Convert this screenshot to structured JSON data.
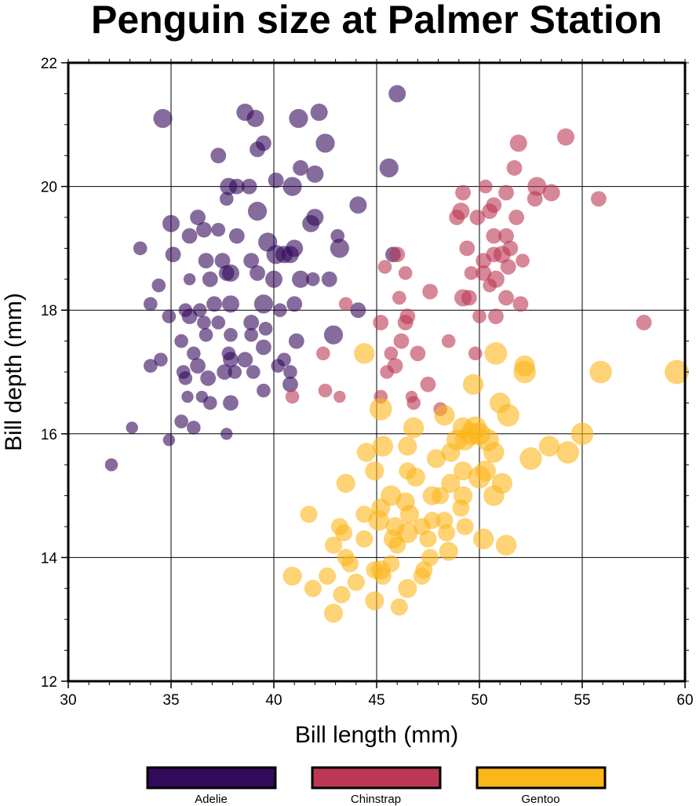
{
  "chart_data": {
    "type": "scatter",
    "title": "Penguin size at Palmer Station",
    "xlabel": "Bill length (mm)",
    "ylabel": "Bill depth (mm)",
    "xlim": [
      30,
      60
    ],
    "ylim": [
      12,
      22
    ],
    "xticks": [
      "30",
      "35",
      "40",
      "45",
      "50",
      "55",
      "60"
    ],
    "yticks": [
      "12",
      "14",
      "16",
      "18",
      "20",
      "22"
    ],
    "grid": true,
    "legend_placement": "bottom",
    "marker_opacity": 0.6,
    "series": [
      {
        "name": "Adelie",
        "color": "#330a5c",
        "points": [
          [
            34.6,
            21.1,
            1.1
          ],
          [
            38.6,
            21.2,
            1.0
          ],
          [
            39.1,
            21.1,
            1.0
          ],
          [
            41.2,
            21.1,
            1.1
          ],
          [
            42.2,
            21.2,
            1.0
          ],
          [
            46.0,
            21.5,
            1.0
          ],
          [
            42.5,
            20.7,
            1.1
          ],
          [
            39.5,
            20.7,
            0.9
          ],
          [
            39.2,
            20.6,
            0.9
          ],
          [
            37.3,
            20.5,
            0.9
          ],
          [
            41.3,
            20.3,
            0.9
          ],
          [
            42.0,
            20.2,
            1.0
          ],
          [
            45.6,
            20.3,
            1.1
          ],
          [
            37.8,
            20.0,
            1.0
          ],
          [
            38.2,
            20.0,
            0.9
          ],
          [
            38.8,
            20.0,
            0.9
          ],
          [
            40.1,
            20.1,
            0.9
          ],
          [
            40.9,
            20.0,
            1.1
          ],
          [
            37.7,
            19.8,
            0.8
          ],
          [
            39.2,
            19.6,
            1.1
          ],
          [
            44.1,
            19.7,
            1.0
          ],
          [
            35.0,
            19.4,
            1.0
          ],
          [
            36.3,
            19.5,
            0.9
          ],
          [
            36.6,
            19.3,
            0.9
          ],
          [
            35.1,
            18.9,
            0.9
          ],
          [
            35.9,
            19.2,
            0.9
          ],
          [
            33.5,
            19.0,
            0.8
          ],
          [
            42.0,
            19.5,
            1.0
          ],
          [
            41.8,
            19.4,
            1.0
          ],
          [
            43.2,
            19.0,
            1.1
          ],
          [
            43.1,
            19.2,
            0.8
          ],
          [
            38.2,
            19.2,
            0.9
          ],
          [
            37.3,
            19.3,
            0.8
          ],
          [
            39.7,
            19.1,
            1.1
          ],
          [
            40.5,
            18.9,
            1.0
          ],
          [
            41.0,
            19.0,
            1.0
          ],
          [
            40.8,
            18.9,
            1.0
          ],
          [
            40.1,
            18.9,
            1.1
          ],
          [
            45.8,
            18.9,
            0.9
          ],
          [
            36.7,
            18.8,
            0.9
          ],
          [
            37.5,
            18.8,
            0.9
          ],
          [
            38.9,
            18.8,
            0.9
          ],
          [
            34.4,
            18.4,
            0.8
          ],
          [
            35.9,
            18.5,
            0.7
          ],
          [
            36.9,
            18.5,
            0.9
          ],
          [
            37.7,
            18.6,
            0.9
          ],
          [
            37.9,
            18.6,
            1.0
          ],
          [
            39.2,
            18.6,
            0.9
          ],
          [
            40.0,
            18.5,
            1.0
          ],
          [
            41.3,
            18.5,
            1.0
          ],
          [
            41.9,
            18.5,
            0.8
          ],
          [
            42.7,
            18.5,
            0.9
          ],
          [
            34.0,
            18.1,
            0.8
          ],
          [
            35.7,
            18.0,
            0.8
          ],
          [
            36.4,
            18.0,
            0.8
          ],
          [
            37.1,
            18.1,
            0.9
          ],
          [
            37.9,
            18.1,
            1.0
          ],
          [
            39.5,
            18.1,
            1.1
          ],
          [
            40.3,
            18.0,
            0.8
          ],
          [
            41.0,
            18.1,
            0.9
          ],
          [
            44.1,
            18.0,
            0.9
          ],
          [
            34.9,
            17.9,
            0.8
          ],
          [
            35.9,
            17.9,
            0.9
          ],
          [
            36.6,
            17.8,
            0.8
          ],
          [
            37.3,
            17.8,
            0.8
          ],
          [
            38.9,
            17.8,
            0.9
          ],
          [
            39.6,
            17.7,
            0.8
          ],
          [
            35.5,
            17.5,
            0.8
          ],
          [
            36.7,
            17.6,
            0.8
          ],
          [
            37.9,
            17.6,
            0.8
          ],
          [
            38.9,
            17.6,
            0.8
          ],
          [
            41.1,
            17.5,
            0.9
          ],
          [
            42.9,
            17.6,
            1.1
          ],
          [
            36.1,
            17.3,
            0.8
          ],
          [
            37.8,
            17.3,
            0.8
          ],
          [
            37.9,
            17.2,
            0.9
          ],
          [
            38.6,
            17.2,
            0.9
          ],
          [
            39.5,
            17.4,
            0.9
          ],
          [
            40.5,
            17.2,
            0.8
          ],
          [
            34.0,
            17.1,
            0.8
          ],
          [
            34.5,
            17.2,
            0.8
          ],
          [
            35.6,
            17.0,
            0.8
          ],
          [
            36.3,
            17.1,
            0.9
          ],
          [
            37.6,
            17.0,
            0.9
          ],
          [
            38.1,
            17.0,
            0.8
          ],
          [
            39.0,
            17.0,
            0.8
          ],
          [
            40.2,
            17.1,
            0.8
          ],
          [
            35.7,
            16.9,
            0.8
          ],
          [
            36.8,
            16.9,
            0.9
          ],
          [
            40.8,
            17.0,
            0.8
          ],
          [
            35.8,
            16.6,
            0.7
          ],
          [
            36.5,
            16.6,
            0.7
          ],
          [
            36.9,
            16.5,
            0.8
          ],
          [
            37.9,
            16.5,
            0.9
          ],
          [
            39.5,
            16.7,
            0.8
          ],
          [
            40.8,
            16.8,
            0.9
          ],
          [
            35.5,
            16.2,
            0.8
          ],
          [
            36.1,
            16.1,
            0.8
          ],
          [
            33.1,
            16.1,
            0.7
          ],
          [
            34.9,
            15.9,
            0.7
          ],
          [
            37.7,
            16.0,
            0.7
          ],
          [
            32.1,
            15.5,
            0.75
          ]
        ]
      },
      {
        "name": "Chinstrap",
        "color": "#bb3754",
        "points": [
          [
            54.2,
            20.8,
            1.0
          ],
          [
            51.9,
            20.7,
            1.0
          ],
          [
            51.7,
            20.3,
            0.9
          ],
          [
            52.8,
            20.0,
            1.1
          ],
          [
            53.5,
            19.9,
            1.0
          ],
          [
            52.7,
            19.8,
            0.9
          ],
          [
            55.8,
            19.8,
            0.9
          ],
          [
            49.2,
            19.9,
            0.9
          ],
          [
            50.3,
            20.0,
            0.8
          ],
          [
            51.3,
            19.9,
            0.9
          ],
          [
            49.1,
            19.6,
            1.0
          ],
          [
            48.9,
            19.5,
            0.9
          ],
          [
            50.7,
            19.7,
            0.9
          ],
          [
            50.5,
            19.6,
            0.9
          ],
          [
            49.9,
            19.5,
            0.9
          ],
          [
            51.8,
            19.5,
            0.9
          ],
          [
            49.4,
            19.0,
            0.9
          ],
          [
            50.7,
            19.2,
            0.9
          ],
          [
            51.3,
            19.2,
            0.9
          ],
          [
            51.1,
            18.9,
            1.0
          ],
          [
            51.5,
            19.0,
            0.9
          ],
          [
            50.2,
            18.8,
            0.9
          ],
          [
            52.1,
            18.8,
            0.8
          ],
          [
            50.7,
            18.9,
            0.9
          ],
          [
            49.6,
            18.6,
            0.8
          ],
          [
            50.2,
            18.6,
            0.9
          ],
          [
            51.4,
            18.7,
            0.9
          ],
          [
            50.8,
            18.5,
            1.0
          ],
          [
            46.0,
            18.9,
            0.9
          ],
          [
            45.4,
            18.7,
            0.8
          ],
          [
            46.4,
            18.6,
            0.8
          ],
          [
            50.5,
            18.4,
            0.8
          ],
          [
            49.2,
            18.2,
            1.0
          ],
          [
            49.5,
            18.2,
            0.9
          ],
          [
            47.6,
            18.3,
            0.9
          ],
          [
            46.1,
            18.2,
            0.8
          ],
          [
            51.3,
            18.2,
            0.9
          ],
          [
            52.0,
            18.1,
            0.9
          ],
          [
            43.5,
            18.1,
            0.8
          ],
          [
            50.0,
            17.9,
            0.8
          ],
          [
            50.8,
            17.9,
            0.9
          ],
          [
            46.5,
            17.9,
            0.9
          ],
          [
            46.4,
            17.8,
            0.9
          ],
          [
            45.2,
            17.8,
            0.9
          ],
          [
            58.0,
            17.8,
            0.9
          ],
          [
            48.5,
            17.5,
            0.8
          ],
          [
            46.2,
            17.5,
            0.9
          ],
          [
            45.7,
            17.3,
            0.8
          ],
          [
            42.4,
            17.3,
            0.8
          ],
          [
            47.0,
            17.3,
            0.9
          ],
          [
            49.8,
            17.3,
            0.8
          ],
          [
            45.5,
            17.0,
            0.8
          ],
          [
            45.9,
            17.1,
            0.9
          ],
          [
            47.5,
            16.8,
            0.9
          ],
          [
            42.5,
            16.7,
            0.8
          ],
          [
            40.9,
            16.6,
            0.8
          ],
          [
            43.2,
            16.6,
            0.7
          ],
          [
            45.2,
            16.6,
            0.8
          ],
          [
            46.8,
            16.5,
            0.8
          ],
          [
            46.7,
            16.6,
            0.7
          ],
          [
            48.1,
            16.4,
            0.8
          ]
        ]
      },
      {
        "name": "Gentoo",
        "color": "#fbb61a",
        "points": [
          [
            44.4,
            17.3,
            1.2
          ],
          [
            50.8,
            17.3,
            1.3
          ],
          [
            52.2,
            17.1,
            1.2
          ],
          [
            52.2,
            17.0,
            1.3
          ],
          [
            55.9,
            17.0,
            1.3
          ],
          [
            59.6,
            17.0,
            1.4
          ],
          [
            49.7,
            16.8,
            1.2
          ],
          [
            51.0,
            16.5,
            1.2
          ],
          [
            51.4,
            16.3,
            1.3
          ],
          [
            48.3,
            16.3,
            1.2
          ],
          [
            45.2,
            16.4,
            1.3
          ],
          [
            46.8,
            16.1,
            1.2
          ],
          [
            49.2,
            16.1,
            1.2
          ],
          [
            49.6,
            16.0,
            1.3
          ],
          [
            50.0,
            16.0,
            1.3
          ],
          [
            49.3,
            15.9,
            1.2
          ],
          [
            50.4,
            15.9,
            1.3
          ],
          [
            48.9,
            15.9,
            1.2
          ],
          [
            49.8,
            16.1,
            1.3
          ],
          [
            45.3,
            15.8,
            1.2
          ],
          [
            46.5,
            15.8,
            1.1
          ],
          [
            53.4,
            15.8,
            1.2
          ],
          [
            55.0,
            16.0,
            1.3
          ],
          [
            50.7,
            15.7,
            1.2
          ],
          [
            48.6,
            15.7,
            1.1
          ],
          [
            44.5,
            15.7,
            1.1
          ],
          [
            54.3,
            15.7,
            1.3
          ],
          [
            52.5,
            15.6,
            1.3
          ],
          [
            47.9,
            15.6,
            1.1
          ],
          [
            44.9,
            15.4,
            1.1
          ],
          [
            46.5,
            15.4,
            1.0
          ],
          [
            46.9,
            15.3,
            1.1
          ],
          [
            50.0,
            15.3,
            1.3
          ],
          [
            50.3,
            15.4,
            1.2
          ],
          [
            49.2,
            15.4,
            1.1
          ],
          [
            51.1,
            15.2,
            1.2
          ],
          [
            48.6,
            15.2,
            1.1
          ],
          [
            43.5,
            15.2,
            1.1
          ],
          [
            47.7,
            15.0,
            1.1
          ],
          [
            50.7,
            15.0,
            1.2
          ],
          [
            49.2,
            15.0,
            1.1
          ],
          [
            45.7,
            15.0,
            1.2
          ],
          [
            46.4,
            14.9,
            1.1
          ],
          [
            48.1,
            15.0,
            1.0
          ],
          [
            45.2,
            14.8,
            1.1
          ],
          [
            49.1,
            14.8,
            1.0
          ],
          [
            46.6,
            14.7,
            1.1
          ],
          [
            41.7,
            14.7,
            1.0
          ],
          [
            44.4,
            14.7,
            1.0
          ],
          [
            45.1,
            14.6,
            1.2
          ],
          [
            47.7,
            14.6,
            1.0
          ],
          [
            48.3,
            14.6,
            1.0
          ],
          [
            47.2,
            14.5,
            1.0
          ],
          [
            49.3,
            14.5,
            1.0
          ],
          [
            43.2,
            14.5,
            1.0
          ],
          [
            45.9,
            14.5,
            1.1
          ],
          [
            46.5,
            14.4,
            1.2
          ],
          [
            43.4,
            14.4,
            1.0
          ],
          [
            48.4,
            14.4,
            1.0
          ],
          [
            44.4,
            14.3,
            1.0
          ],
          [
            50.2,
            14.3,
            1.2
          ],
          [
            45.8,
            14.3,
            1.1
          ],
          [
            47.5,
            14.3,
            1.0
          ],
          [
            42.9,
            14.2,
            1.0
          ],
          [
            51.3,
            14.2,
            1.2
          ],
          [
            46.0,
            14.2,
            1.0
          ],
          [
            48.5,
            14.1,
            1.1
          ],
          [
            43.5,
            14.0,
            1.0
          ],
          [
            47.6,
            14.0,
            1.0
          ],
          [
            45.7,
            13.9,
            1.0
          ],
          [
            43.7,
            13.9,
            1.0
          ],
          [
            44.9,
            13.8,
            1.0
          ],
          [
            45.2,
            13.8,
            1.1
          ],
          [
            47.3,
            13.8,
            1.0
          ],
          [
            40.9,
            13.7,
            1.1
          ],
          [
            42.6,
            13.7,
            1.0
          ],
          [
            45.3,
            13.7,
            1.0
          ],
          [
            47.2,
            13.7,
            1.0
          ],
          [
            44.0,
            13.6,
            1.0
          ],
          [
            41.9,
            13.5,
            1.0
          ],
          [
            46.5,
            13.5,
            1.1
          ],
          [
            43.3,
            13.4,
            1.0
          ],
          [
            44.9,
            13.3,
            1.1
          ],
          [
            46.1,
            13.2,
            1.0
          ],
          [
            42.9,
            13.1,
            1.1
          ]
        ]
      }
    ]
  }
}
